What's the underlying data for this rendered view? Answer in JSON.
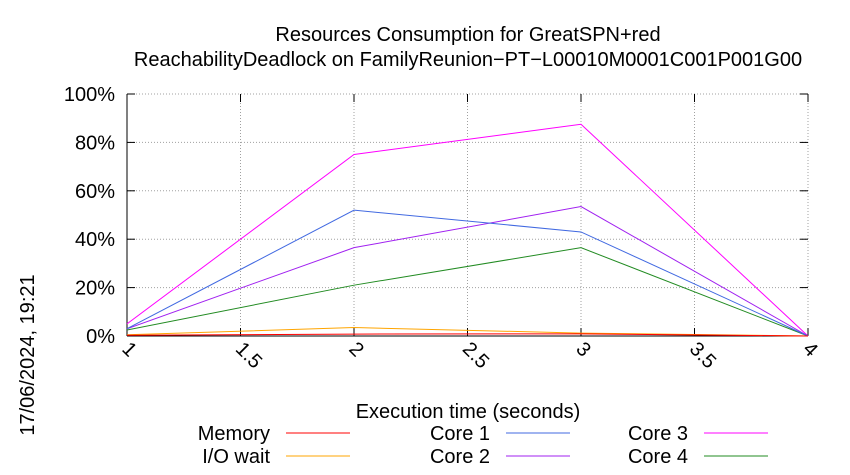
{
  "chart_data": {
    "type": "line",
    "title_line1": "Resources Consumption for GreatSPN+red",
    "title_line2": "ReachabilityDeadlock on FamilyReunion−PT−L00010M0001C001P001G00",
    "xlabel": "Execution time (seconds)",
    "ylabel": "",
    "timestamp": "17/06/2024, 19:21",
    "xlim": [
      1,
      4
    ],
    "ylim": [
      0,
      100
    ],
    "grid": true,
    "x_ticks": [
      {
        "value": 1,
        "label": "1"
      },
      {
        "value": 1.5,
        "label": "1.5"
      },
      {
        "value": 2,
        "label": "2"
      },
      {
        "value": 2.5,
        "label": "2.5"
      },
      {
        "value": 3,
        "label": "3"
      },
      {
        "value": 3.5,
        "label": "3.5"
      },
      {
        "value": 4,
        "label": "4"
      }
    ],
    "y_ticks": [
      {
        "value": 0,
        "label": "0%"
      },
      {
        "value": 20,
        "label": "20%"
      },
      {
        "value": 40,
        "label": "40%"
      },
      {
        "value": 60,
        "label": "60%"
      },
      {
        "value": 80,
        "label": "80%"
      },
      {
        "value": 100,
        "label": "100%"
      }
    ],
    "legend_position": "bottom",
    "x": [
      1,
      2,
      3,
      4
    ],
    "series": [
      {
        "name": "Memory",
        "color": "#ff0000",
        "values": [
          0.3,
          0.8,
          0.9,
          0
        ]
      },
      {
        "name": "I/O wait",
        "color": "#ffa500",
        "values": [
          0.5,
          3.5,
          1.2,
          0
        ]
      },
      {
        "name": "Core 1",
        "color": "#4169e1",
        "values": [
          3,
          52,
          43,
          0
        ]
      },
      {
        "name": "Core 2",
        "color": "#a020f0",
        "values": [
          3,
          36.5,
          53.5,
          0
        ]
      },
      {
        "name": "Core 3",
        "color": "#ff00ff",
        "values": [
          5,
          75,
          87.5,
          0
        ]
      },
      {
        "name": "Core 4",
        "color": "#228b22",
        "values": [
          2.5,
          21,
          36.5,
          0
        ]
      }
    ]
  }
}
